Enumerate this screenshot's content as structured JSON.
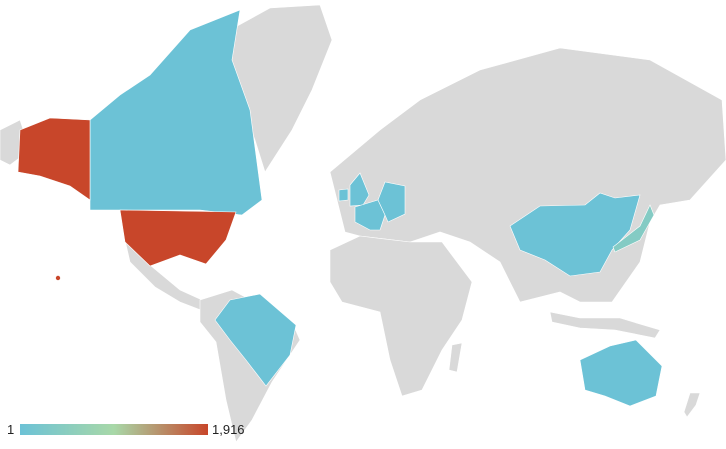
{
  "legend": {
    "min_label": "1",
    "max_label": "1,916",
    "min_color": "#6cc2d6",
    "mid_color": "#a8d8a8",
    "max_color": "#c8462a"
  },
  "land_color": "#d9d9d9",
  "regions": [
    {
      "id": "US",
      "level": 1.0
    },
    {
      "id": "CA",
      "level": 0.0
    },
    {
      "id": "GB",
      "level": 0.0
    },
    {
      "id": "IE",
      "level": 0.0
    },
    {
      "id": "FR",
      "level": 0.0
    },
    {
      "id": "DE",
      "level": 0.0
    },
    {
      "id": "BR",
      "level": 0.0
    },
    {
      "id": "CN",
      "level": 0.0
    },
    {
      "id": "JP",
      "level": 0.2
    },
    {
      "id": "AU",
      "level": 0.0
    }
  ]
}
